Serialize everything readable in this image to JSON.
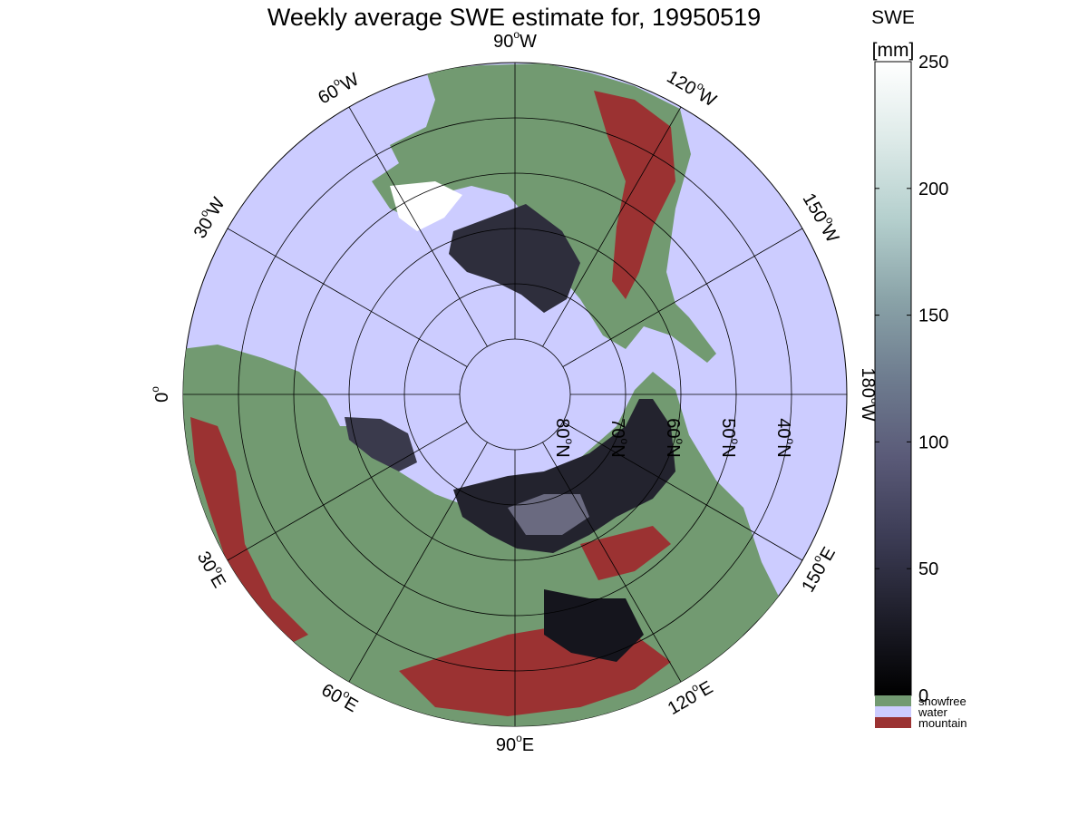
{
  "title": "Weekly average SWE estimate for, 19950519",
  "colorbar": {
    "label_line1": "SWE",
    "label_line2": "[mm]",
    "ticks": [
      0,
      50,
      100,
      150,
      200,
      250
    ],
    "range": [
      0,
      250
    ],
    "colormap": [
      "#000000",
      "#1e1e2a",
      "#3c3c55",
      "#5a5a78",
      "#6e7c8f",
      "#8aa3a8",
      "#b4cfcd",
      "#ddeae8",
      "#ffffff"
    ],
    "categories": [
      {
        "label": "snowfree",
        "color": "#729a71"
      },
      {
        "label": "water",
        "color": "#ccccff"
      },
      {
        "label": "mountain",
        "color": "#9b3232"
      }
    ]
  },
  "map": {
    "projection": "north polar azimuthal",
    "ocean_color": "#ccccff",
    "land_color": "#729a71",
    "mountain_color": "#9b3232",
    "lon_labels": [
      {
        "text": "90",
        "unit": "W",
        "lon": -90
      },
      {
        "text": "60",
        "unit": "W",
        "lon": -60
      },
      {
        "text": "30",
        "unit": "W",
        "lon": -30
      },
      {
        "text": "0",
        "unit": "",
        "lon": 0
      },
      {
        "text": "30",
        "unit": "E",
        "lon": 30
      },
      {
        "text": "60",
        "unit": "E",
        "lon": 60
      },
      {
        "text": "90",
        "unit": "E",
        "lon": 90
      },
      {
        "text": "120",
        "unit": "E",
        "lon": 120
      },
      {
        "text": "150",
        "unit": "E",
        "lon": 150
      },
      {
        "text": "180",
        "unit": "W",
        "lon": 180
      },
      {
        "text": "150",
        "unit": "W",
        "lon": -150
      },
      {
        "text": "120",
        "unit": "W",
        "lon": -120
      }
    ],
    "lat_circles": [
      80,
      70,
      60,
      50,
      40
    ],
    "lat_labels": [
      {
        "text": "80",
        "unit": "N",
        "lat": 80
      },
      {
        "text": "70",
        "unit": "N",
        "lat": 70
      },
      {
        "text": "60",
        "unit": "N",
        "lat": 60
      },
      {
        "text": "50",
        "unit": "N",
        "lat": 50
      },
      {
        "text": "40",
        "unit": "N",
        "lat": 40
      }
    ],
    "lat_min": 30
  }
}
